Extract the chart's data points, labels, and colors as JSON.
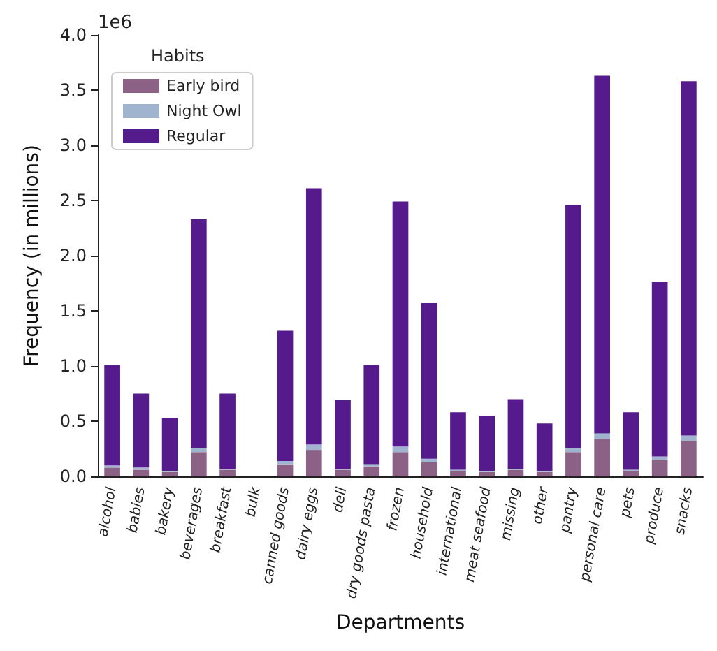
{
  "chart_data": {
    "type": "bar",
    "stacked": true,
    "xlabel": "Departments",
    "ylabel": "Frequency (in millions)",
    "legend_title": "Habits",
    "legend": "top left",
    "grid": false,
    "annotations": [
      "1e6"
    ],
    "categories": [
      "alcohol",
      "babies",
      "bakery",
      "beverages",
      "breakfast",
      "bulk",
      "canned goods",
      "dairy eggs",
      "deli",
      "dry goods pasta",
      "frozen",
      "household",
      "international",
      "meat seafood",
      "missing",
      "other",
      "pantry",
      "personal care",
      "pets",
      "produce",
      "snacks"
    ],
    "ylim": [
      0,
      4
    ],
    "yticks": [
      {
        "value": 0,
        "label": "0.0"
      },
      {
        "value": 0.5,
        "label": "0.5"
      },
      {
        "value": 1,
        "label": "1.0"
      },
      {
        "value": 1.5,
        "label": "1.5"
      },
      {
        "value": 2,
        "label": "2.0"
      },
      {
        "value": 2.5,
        "label": "2.5"
      },
      {
        "value": 3,
        "label": "3.0"
      },
      {
        "value": 3.5,
        "label": "3.5"
      },
      {
        "value": 4,
        "label": "4.0"
      }
    ],
    "series": [
      {
        "name": "Early bird",
        "color": "#8b6285",
        "values": [
          0.08,
          0.06,
          0.04,
          0.22,
          0.06,
          null,
          0.11,
          0.24,
          0.06,
          0.09,
          0.22,
          0.13,
          0.05,
          0.04,
          0.06,
          0.04,
          0.22,
          0.34,
          0.05,
          0.15,
          0.32
        ]
      },
      {
        "name": "Night Owl",
        "color": "#a0b4d0",
        "values": [
          0.02,
          0.02,
          0.01,
          0.04,
          0.01,
          null,
          0.03,
          0.05,
          0.01,
          0.02,
          0.05,
          0.03,
          0.01,
          0.01,
          0.01,
          0.01,
          0.04,
          0.05,
          0.01,
          0.03,
          0.05
        ]
      },
      {
        "name": "Regular",
        "color": "#551a8b",
        "values": [
          0.91,
          0.67,
          0.48,
          2.07,
          0.68,
          null,
          1.18,
          2.32,
          0.62,
          0.9,
          2.22,
          1.41,
          0.52,
          0.5,
          0.63,
          0.43,
          2.2,
          3.24,
          0.52,
          1.58,
          3.21
        ]
      }
    ]
  }
}
